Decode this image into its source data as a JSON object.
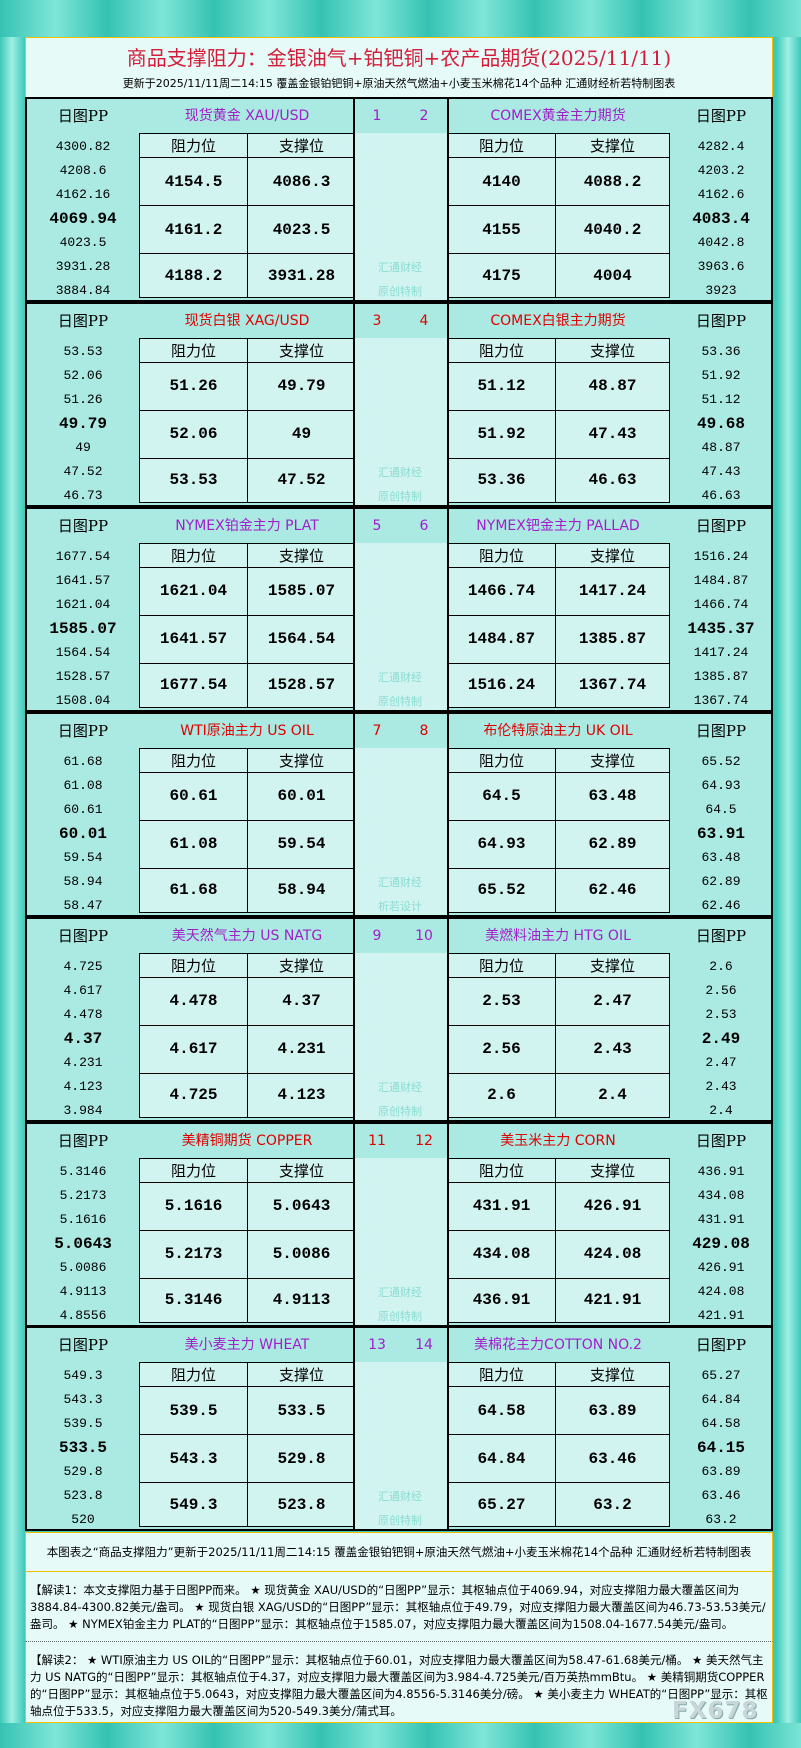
{
  "header": {
    "title": "商品支撑阻力：金银油气+铂钯铜+农产品期货(2025/11/11)",
    "subtitle": "更新于2025/11/11周二14:15  覆盖金银铂钯铜+原油天然气燃油+小麦玉米棉花14个品种  汇通财经析若特制图表"
  },
  "labels": {
    "pp": "日图PP",
    "resistance": "阻力位",
    "support": "支撑位"
  },
  "colors": {
    "purple": "#a21ec8",
    "red": "#e00000"
  },
  "blocks": [
    {
      "nums": [
        "1",
        "2"
      ],
      "color": "purple",
      "watermark": [
        "汇通财经",
        "原创特制"
      ],
      "left": {
        "name": "现货黄金  XAU/USD",
        "pp": [
          "4300.82",
          "4208.6",
          "4162.16",
          "4069.94",
          "4023.5",
          "3931.28",
          "3884.84"
        ],
        "res": [
          "4154.5",
          "4161.2",
          "4188.2"
        ],
        "sup": [
          "4086.3",
          "4023.5",
          "3931.28"
        ]
      },
      "right": {
        "name": "COMEX黄金主力期货",
        "pp": [
          "4282.4",
          "4203.2",
          "4162.6",
          "4083.4",
          "4042.8",
          "3963.6",
          "3923"
        ],
        "res": [
          "4140",
          "4155",
          "4175"
        ],
        "sup": [
          "4088.2",
          "4040.2",
          "4004"
        ]
      }
    },
    {
      "nums": [
        "3",
        "4"
      ],
      "color": "red",
      "watermark": [
        "汇通财经",
        "原创特制"
      ],
      "left": {
        "name": "现货白银  XAG/USD",
        "pp": [
          "53.53",
          "52.06",
          "51.26",
          "49.79",
          "49",
          "47.52",
          "46.73"
        ],
        "res": [
          "51.26",
          "52.06",
          "53.53"
        ],
        "sup": [
          "49.79",
          "49",
          "47.52"
        ]
      },
      "right": {
        "name": "COMEX白银主力期货",
        "pp": [
          "53.36",
          "51.92",
          "51.12",
          "49.68",
          "48.87",
          "47.43",
          "46.63"
        ],
        "res": [
          "51.12",
          "51.92",
          "53.36"
        ],
        "sup": [
          "48.87",
          "47.43",
          "46.63"
        ]
      }
    },
    {
      "nums": [
        "5",
        "6"
      ],
      "color": "purple",
      "watermark": [
        "汇通财经",
        "原创特制"
      ],
      "left": {
        "name": "NYMEX铂金主力  PLAT",
        "pp": [
          "1677.54",
          "1641.57",
          "1621.04",
          "1585.07",
          "1564.54",
          "1528.57",
          "1508.04"
        ],
        "res": [
          "1621.04",
          "1641.57",
          "1677.54"
        ],
        "sup": [
          "1585.07",
          "1564.54",
          "1528.57"
        ]
      },
      "right": {
        "name": "NYMEX钯金主力  PALLAD",
        "pp": [
          "1516.24",
          "1484.87",
          "1466.74",
          "1435.37",
          "1417.24",
          "1385.87",
          "1367.74"
        ],
        "res": [
          "1466.74",
          "1484.87",
          "1516.24"
        ],
        "sup": [
          "1417.24",
          "1385.87",
          "1367.74"
        ]
      }
    },
    {
      "nums": [
        "7",
        "8"
      ],
      "color": "red",
      "watermark": [
        "汇通财经",
        "析若设计"
      ],
      "left": {
        "name": "WTI原油主力  US OIL",
        "pp": [
          "61.68",
          "61.08",
          "60.61",
          "60.01",
          "59.54",
          "58.94",
          "58.47"
        ],
        "res": [
          "60.61",
          "61.08",
          "61.68"
        ],
        "sup": [
          "60.01",
          "59.54",
          "58.94"
        ]
      },
      "right": {
        "name": "布伦特原油主力  UK OIL",
        "pp": [
          "65.52",
          "64.93",
          "64.5",
          "63.91",
          "63.48",
          "62.89",
          "62.46"
        ],
        "res": [
          "64.5",
          "64.93",
          "65.52"
        ],
        "sup": [
          "63.48",
          "62.89",
          "62.46"
        ]
      }
    },
    {
      "nums": [
        "9",
        "10"
      ],
      "color": "purple",
      "watermark": [
        "汇通财经",
        "原创特制"
      ],
      "left": {
        "name": "美天然气主力  US NATG",
        "pp": [
          "4.725",
          "4.617",
          "4.478",
          "4.37",
          "4.231",
          "4.123",
          "3.984"
        ],
        "res": [
          "4.478",
          "4.617",
          "4.725"
        ],
        "sup": [
          "4.37",
          "4.231",
          "4.123"
        ]
      },
      "right": {
        "name": "美燃料油主力  HTG OIL",
        "pp": [
          "2.6",
          "2.56",
          "2.53",
          "2.49",
          "2.47",
          "2.43",
          "2.4"
        ],
        "res": [
          "2.53",
          "2.56",
          "2.6"
        ],
        "sup": [
          "2.47",
          "2.43",
          "2.4"
        ]
      }
    },
    {
      "nums": [
        "11",
        "12"
      ],
      "color": "red",
      "watermark": [
        "汇通财经",
        "原创特制"
      ],
      "left": {
        "name": "美精铜期货  COPPER",
        "pp": [
          "5.3146",
          "5.2173",
          "5.1616",
          "5.0643",
          "5.0086",
          "4.9113",
          "4.8556"
        ],
        "res": [
          "5.1616",
          "5.2173",
          "5.3146"
        ],
        "sup": [
          "5.0643",
          "5.0086",
          "4.9113"
        ]
      },
      "right": {
        "name": "美玉米主力  CORN",
        "pp": [
          "436.91",
          "434.08",
          "431.91",
          "429.08",
          "426.91",
          "424.08",
          "421.91"
        ],
        "res": [
          "431.91",
          "434.08",
          "436.91"
        ],
        "sup": [
          "426.91",
          "424.08",
          "421.91"
        ]
      }
    },
    {
      "nums": [
        "13",
        "14"
      ],
      "color": "purple",
      "watermark": [
        "汇通财经",
        "原创特制"
      ],
      "left": {
        "name": "美小麦主力  WHEAT",
        "pp": [
          "549.3",
          "543.3",
          "539.5",
          "533.5",
          "529.8",
          "523.8",
          "520"
        ],
        "res": [
          "539.5",
          "543.3",
          "549.3"
        ],
        "sup": [
          "533.5",
          "529.8",
          "523.8"
        ]
      },
      "right": {
        "name": "美棉花主力COTTON NO.2",
        "pp": [
          "65.27",
          "64.84",
          "64.58",
          "64.15",
          "63.89",
          "63.46",
          "63.2"
        ],
        "res": [
          "64.58",
          "64.84",
          "65.27"
        ],
        "sup": [
          "63.89",
          "63.46",
          "63.2"
        ]
      }
    }
  ],
  "footer": {
    "summary": "本图表之“商品支撑阻力”更新于2025/11/11周二14:15  覆盖金银铂钯铜+原油天然气燃油+小麦玉米棉花14个品种  汇通财经析若特制图表",
    "note1": "【解读1：本文支撑阻力基于日图PP而来。 ★ 现货黄金 XAU/USD的“日图PP”显示：其枢轴点位于4069.94，对应支撑阻力最大覆盖区间为3884.84-4300.82美元/盎司。 ★ 现货白银 XAG/USD的“日图PP”显示：其枢轴点位于49.79，对应支撑阻力最大覆盖区间为46.73-53.53美元/盎司。 ★ NYMEX铂金主力 PLAT的“日图PP”显示：其枢轴点位于1585.07，对应支撑阻力最大覆盖区间为1508.04-1677.54美元/盎司。",
    "note2": "【解读2： ★ WTI原油主力 US OIL的“日图PP”显示：其枢轴点位于60.01，对应支撑阻力最大覆盖区间为58.47-61.68美元/桶。 ★ 美天然气主力 US NATG的“日图PP”显示：其枢轴点位于4.37，对应支撑阻力最大覆盖区间为3.984-4.725美元/百万英热mmBtu。 ★ 美精铜期货COPPER的“日图PP”显示：其枢轴点位于5.0643，对应支撑阻力最大覆盖区间为4.8556-5.3146美分/磅。 ★ 美小麦主力 WHEAT的“日图PP”显示：其枢轴点位于533.5，对应支撑阻力最大覆盖区间为520-549.3美分/蒲式耳。",
    "logo": "FX678"
  }
}
